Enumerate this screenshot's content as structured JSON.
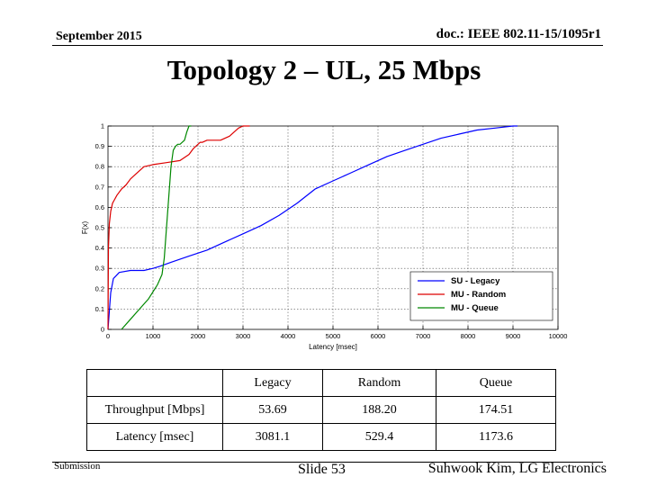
{
  "header": {
    "date": "September 2015",
    "doc": "doc.: IEEE 802.11-15/1095r1"
  },
  "slide_title": "Topology 2 – UL, 25 Mbps",
  "chart_data": {
    "type": "line",
    "xlabel": "Latency [msec]",
    "ylabel": "F(x)",
    "xlim": [
      0,
      10000
    ],
    "ylim": [
      0,
      1
    ],
    "x_ticks": [
      "0",
      "1000",
      "2000",
      "3000",
      "4000",
      "5000",
      "6000",
      "7000",
      "8000",
      "9000",
      "10000"
    ],
    "y_ticks": [
      "0",
      "0.1",
      "0.2",
      "0.3",
      "0.4",
      "0.5",
      "0.6",
      "0.7",
      "0.8",
      "0.9",
      "1"
    ],
    "grid": true,
    "legend_position": "bottom-right",
    "series": [
      {
        "name": "SU - Legacy",
        "color": "#0000ff",
        "x": [
          0,
          60,
          120,
          250,
          500,
          800,
          1000,
          1150,
          1400,
          1800,
          2200,
          2600,
          3000,
          3400,
          3800,
          4200,
          4600,
          5000,
          5400,
          5800,
          6200,
          6600,
          7000,
          7400,
          7800,
          8200,
          8600,
          9000,
          9100
        ],
        "y": [
          0,
          0.18,
          0.25,
          0.28,
          0.29,
          0.29,
          0.3,
          0.31,
          0.33,
          0.36,
          0.39,
          0.43,
          0.47,
          0.51,
          0.56,
          0.62,
          0.69,
          0.73,
          0.77,
          0.81,
          0.85,
          0.88,
          0.91,
          0.94,
          0.96,
          0.98,
          0.99,
          1.0,
          1.0
        ]
      },
      {
        "name": "MU - Random",
        "color": "#dd0000",
        "x": [
          0,
          10,
          30,
          60,
          100,
          200,
          300,
          400,
          500,
          600,
          700,
          800,
          1000,
          1300,
          1600,
          1800,
          1900,
          2000,
          2050,
          2100,
          2200,
          2500,
          2700,
          2800,
          2900,
          3000,
          3150
        ],
        "y": [
          0,
          0.4,
          0.52,
          0.58,
          0.62,
          0.66,
          0.69,
          0.71,
          0.74,
          0.76,
          0.78,
          0.8,
          0.81,
          0.82,
          0.83,
          0.86,
          0.89,
          0.91,
          0.92,
          0.92,
          0.93,
          0.93,
          0.95,
          0.97,
          0.99,
          1.0,
          1.0
        ]
      },
      {
        "name": "MU - Queue",
        "color": "#008800",
        "x": [
          300,
          500,
          700,
          900,
          1100,
          1200,
          1250,
          1300,
          1350,
          1400,
          1450,
          1500,
          1550,
          1600,
          1650,
          1700,
          1750,
          1800,
          1850
        ],
        "y": [
          0,
          0.05,
          0.1,
          0.15,
          0.22,
          0.27,
          0.35,
          0.5,
          0.65,
          0.8,
          0.88,
          0.9,
          0.91,
          0.91,
          0.92,
          0.93,
          0.97,
          1.0,
          1.0
        ]
      }
    ]
  },
  "table": {
    "headers": [
      "",
      "Legacy",
      "Random",
      "Queue"
    ],
    "rows": [
      [
        "Throughput [Mbps]",
        "53.69",
        "188.20",
        "174.51"
      ],
      [
        "Latency [msec]",
        "3081.1",
        "529.4",
        "1173.6"
      ]
    ]
  },
  "footer": {
    "left": "Submission",
    "center": "Slide 53",
    "right": "Suhwook Kim, LG Electronics"
  }
}
